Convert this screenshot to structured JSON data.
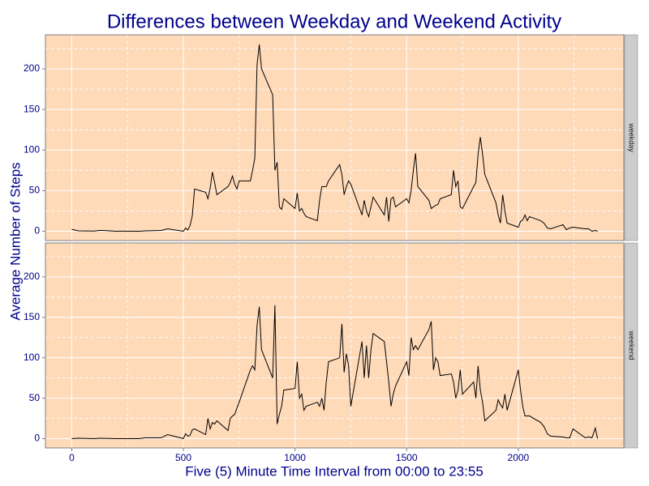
{
  "chart_data": {
    "type": "line",
    "title": "Differences between Weekday and Weekend Activity",
    "xlabel": "Five (5) Minute Time Interval from 00:00 to 23:55",
    "ylabel": "Average Number of Steps",
    "x": [
      0,
      30,
      100,
      130,
      200,
      230,
      300,
      330,
      400,
      430,
      500,
      510,
      520,
      530,
      540,
      550,
      600,
      610,
      620,
      630,
      640,
      650,
      700,
      710,
      720,
      730,
      740,
      750,
      800,
      810,
      820,
      830,
      840,
      850,
      900,
      910,
      920,
      930,
      940,
      950,
      1000,
      1010,
      1020,
      1030,
      1040,
      1050,
      1100,
      1110,
      1120,
      1130,
      1140,
      1150,
      1200,
      1210,
      1220,
      1230,
      1240,
      1250,
      1300,
      1310,
      1320,
      1330,
      1340,
      1350,
      1400,
      1410,
      1420,
      1430,
      1440,
      1450,
      1500,
      1510,
      1520,
      1530,
      1540,
      1550,
      1600,
      1610,
      1620,
      1630,
      1640,
      1650,
      1700,
      1710,
      1720,
      1730,
      1740,
      1750,
      1800,
      1810,
      1820,
      1830,
      1840,
      1850,
      1900,
      1910,
      1920,
      1930,
      1940,
      1950,
      2000,
      2010,
      2020,
      2030,
      2040,
      2050,
      2100,
      2115,
      2130,
      2145,
      2200,
      2215,
      2230,
      2245,
      2300,
      2315,
      2330,
      2345,
      2355
    ],
    "series": [
      {
        "name": "weekday",
        "color": "#000000",
        "values": [
          2.3,
          0.5,
          0.2,
          1.1,
          0,
          0.1,
          0,
          0.5,
          1,
          3,
          0,
          3.9,
          1.6,
          7,
          19,
          52,
          48,
          40,
          53,
          73,
          60,
          45,
          55,
          60,
          68,
          58,
          52,
          62,
          62,
          75,
          90,
          205,
          230,
          200,
          168,
          75,
          85,
          30,
          27,
          40,
          28,
          47,
          25,
          28,
          22,
          18,
          13,
          38,
          55,
          55,
          55,
          62,
          82,
          70,
          45,
          55,
          62,
          58,
          20,
          38,
          25,
          18,
          30,
          42,
          20,
          42,
          12,
          40,
          42,
          30,
          40,
          35,
          50,
          75,
          96,
          55,
          38,
          28,
          30,
          32,
          33,
          40,
          45,
          75,
          55,
          62,
          30,
          28,
          55,
          60,
          95,
          116,
          95,
          70,
          35,
          20,
          10,
          45,
          25,
          10,
          5,
          12,
          14,
          20,
          13,
          18,
          13,
          10,
          4,
          3,
          8,
          2,
          4,
          5,
          3,
          3,
          0,
          1,
          0
        ]
      },
      {
        "name": "weekend",
        "color": "#000000",
        "values": [
          0,
          0.5,
          0,
          0.5,
          0,
          0,
          0,
          1,
          1,
          5,
          0,
          6,
          3,
          4,
          11,
          12,
          5,
          25,
          12,
          20,
          18,
          22,
          10,
          25,
          28,
          30,
          38,
          45,
          85,
          90,
          85,
          140,
          163,
          110,
          75,
          165,
          18,
          30,
          40,
          60,
          62,
          95,
          50,
          55,
          35,
          40,
          45,
          40,
          50,
          35,
          70,
          95,
          100,
          142,
          82,
          105,
          90,
          40,
          120,
          75,
          115,
          75,
          110,
          130,
          120,
          95,
          70,
          40,
          55,
          65,
          95,
          78,
          125,
          110,
          115,
          110,
          135,
          145,
          85,
          100,
          95,
          78,
          80,
          70,
          50,
          60,
          85,
          55,
          70,
          50,
          90,
          60,
          45,
          22,
          35,
          48,
          42,
          38,
          55,
          35,
          85,
          60,
          40,
          28,
          28,
          28,
          20,
          15,
          6,
          3,
          2,
          1,
          1,
          12,
          1,
          2,
          1,
          13,
          0
        ]
      }
    ],
    "xlim": [
      -117.75,
      2472.75
    ],
    "ylim": [
      -11.5,
      241.9
    ],
    "xticks": [
      0,
      500,
      1000,
      1500,
      2000
    ],
    "yticks": [
      0,
      50,
      100,
      150,
      200
    ],
    "xminor": [
      250,
      750,
      1250,
      1750,
      2250
    ],
    "yminor": [
      25,
      75,
      125,
      175,
      225
    ],
    "grid": true,
    "panel_background": "#ffdab9",
    "strip_background": "#cccccc",
    "text_color": "#00008b"
  }
}
